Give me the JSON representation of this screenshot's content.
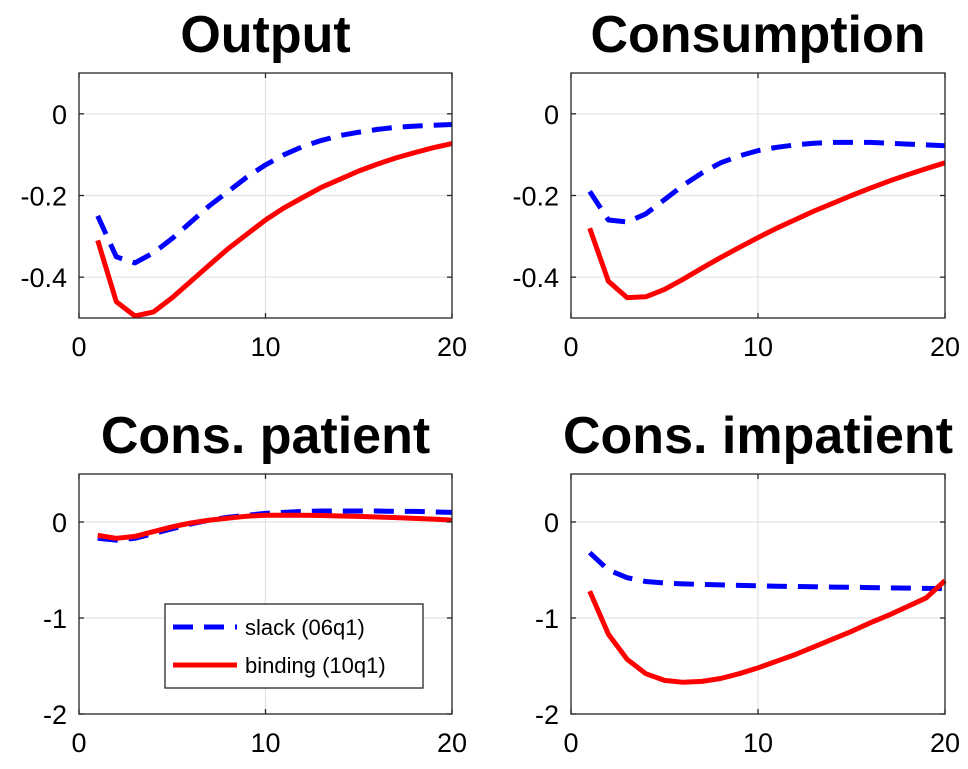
{
  "chart_data": [
    {
      "type": "line",
      "title": "Output",
      "xlabel": "",
      "ylabel": "",
      "xlim": [
        0,
        20
      ],
      "ylim": [
        -0.5,
        0.1
      ],
      "xticks": [
        0,
        10,
        20
      ],
      "yticks": [
        0,
        -0.2,
        -0.4
      ],
      "ytick_labels": [
        "0",
        "-0.2",
        "-0.4"
      ],
      "grid": true,
      "series": [
        {
          "style": "dashed",
          "color": "#0000ff",
          "x": [
            1,
            2,
            3,
            4,
            5,
            6,
            7,
            8,
            9,
            10,
            11,
            12,
            13,
            14,
            15,
            16,
            17,
            18,
            19,
            20
          ],
          "y": [
            -0.25,
            -0.35,
            -0.365,
            -0.34,
            -0.305,
            -0.265,
            -0.225,
            -0.19,
            -0.155,
            -0.125,
            -0.1,
            -0.08,
            -0.065,
            -0.053,
            -0.045,
            -0.038,
            -0.033,
            -0.03,
            -0.028,
            -0.026
          ]
        },
        {
          "style": "solid",
          "color": "#ff0000",
          "x": [
            1,
            2,
            3,
            4,
            5,
            6,
            7,
            8,
            9,
            10,
            11,
            12,
            13,
            14,
            15,
            16,
            17,
            18,
            19,
            20
          ],
          "y": [
            -0.31,
            -0.46,
            -0.495,
            -0.485,
            -0.45,
            -0.41,
            -0.37,
            -0.33,
            -0.295,
            -0.26,
            -0.23,
            -0.205,
            -0.18,
            -0.16,
            -0.14,
            -0.123,
            -0.108,
            -0.095,
            -0.083,
            -0.073
          ]
        }
      ]
    },
    {
      "type": "line",
      "title": "Consumption",
      "xlabel": "",
      "ylabel": "",
      "xlim": [
        0,
        20
      ],
      "ylim": [
        -0.5,
        0.1
      ],
      "xticks": [
        0,
        10,
        20
      ],
      "yticks": [
        0,
        -0.2,
        -0.4
      ],
      "ytick_labels": [
        "0",
        "-0.2",
        "-0.4"
      ],
      "grid": true,
      "series": [
        {
          "style": "dashed",
          "color": "#0000ff",
          "x": [
            1,
            2,
            3,
            4,
            5,
            6,
            7,
            8,
            9,
            10,
            11,
            12,
            13,
            14,
            15,
            16,
            17,
            18,
            19,
            20
          ],
          "y": [
            -0.19,
            -0.26,
            -0.265,
            -0.245,
            -0.21,
            -0.175,
            -0.145,
            -0.12,
            -0.103,
            -0.09,
            -0.082,
            -0.076,
            -0.072,
            -0.07,
            -0.07,
            -0.07,
            -0.072,
            -0.074,
            -0.076,
            -0.078
          ]
        },
        {
          "style": "solid",
          "color": "#ff0000",
          "x": [
            1,
            2,
            3,
            4,
            5,
            6,
            7,
            8,
            9,
            10,
            11,
            12,
            13,
            14,
            15,
            16,
            17,
            18,
            19,
            20
          ],
          "y": [
            -0.28,
            -0.41,
            -0.45,
            -0.448,
            -0.43,
            -0.405,
            -0.378,
            -0.352,
            -0.327,
            -0.303,
            -0.28,
            -0.259,
            -0.238,
            -0.219,
            -0.2,
            -0.182,
            -0.165,
            -0.149,
            -0.134,
            -0.12
          ]
        }
      ]
    },
    {
      "type": "line",
      "title": "Cons. patient",
      "xlabel": "",
      "ylabel": "",
      "xlim": [
        0,
        20
      ],
      "ylim": [
        -2,
        0.5
      ],
      "xticks": [
        0,
        10,
        20
      ],
      "yticks": [
        0,
        -1,
        -2
      ],
      "ytick_labels": [
        "0",
        "-1",
        "-2"
      ],
      "grid": true,
      "legend": {
        "placement": "bottom-center",
        "entries": [
          "slack (06q1)",
          "binding (10q1)"
        ]
      },
      "series": [
        {
          "name": "slack (06q1)",
          "style": "dashed",
          "color": "#0000ff",
          "x": [
            1,
            2,
            3,
            4,
            5,
            6,
            7,
            8,
            9,
            10,
            11,
            12,
            13,
            14,
            15,
            16,
            17,
            18,
            19,
            20
          ],
          "y": [
            -0.17,
            -0.19,
            -0.17,
            -0.12,
            -0.07,
            -0.02,
            0.02,
            0.05,
            0.07,
            0.09,
            0.1,
            0.11,
            0.115,
            0.115,
            0.115,
            0.115,
            0.11,
            0.11,
            0.105,
            0.1
          ]
        },
        {
          "name": "binding (10q1)",
          "style": "solid",
          "color": "#ff0000",
          "x": [
            1,
            2,
            3,
            4,
            5,
            6,
            7,
            8,
            9,
            10,
            11,
            12,
            13,
            14,
            15,
            16,
            17,
            18,
            19,
            20
          ],
          "y": [
            -0.14,
            -0.17,
            -0.15,
            -0.1,
            -0.05,
            -0.01,
            0.02,
            0.04,
            0.06,
            0.07,
            0.07,
            0.07,
            0.068,
            0.063,
            0.058,
            0.052,
            0.046,
            0.038,
            0.03,
            0.02
          ]
        }
      ]
    },
    {
      "type": "line",
      "title": "Cons. impatient",
      "xlabel": "",
      "ylabel": "",
      "xlim": [
        0,
        20
      ],
      "ylim": [
        -2,
        0.5
      ],
      "xticks": [
        0,
        10,
        20
      ],
      "yticks": [
        0,
        -1,
        -2
      ],
      "ytick_labels": [
        "0",
        "-1",
        "-2"
      ],
      "grid": true,
      "series": [
        {
          "style": "dashed",
          "color": "#0000ff",
          "x": [
            1,
            2,
            3,
            4,
            5,
            6,
            7,
            8,
            9,
            10,
            11,
            12,
            13,
            14,
            15,
            16,
            17,
            18,
            19,
            20
          ],
          "y": [
            -0.32,
            -0.5,
            -0.58,
            -0.62,
            -0.635,
            -0.645,
            -0.65,
            -0.655,
            -0.66,
            -0.665,
            -0.67,
            -0.672,
            -0.675,
            -0.678,
            -0.68,
            -0.683,
            -0.686,
            -0.689,
            -0.692,
            -0.695
          ]
        },
        {
          "style": "solid",
          "color": "#ff0000",
          "x": [
            1,
            2,
            3,
            4,
            5,
            6,
            7,
            8,
            9,
            10,
            11,
            12,
            13,
            14,
            15,
            16,
            17,
            18,
            19,
            20
          ],
          "y": [
            -0.72,
            -1.17,
            -1.43,
            -1.58,
            -1.65,
            -1.67,
            -1.66,
            -1.63,
            -1.58,
            -1.52,
            -1.45,
            -1.38,
            -1.3,
            -1.22,
            -1.14,
            -1.05,
            -0.97,
            -0.88,
            -0.79,
            -0.61
          ]
        }
      ]
    }
  ]
}
